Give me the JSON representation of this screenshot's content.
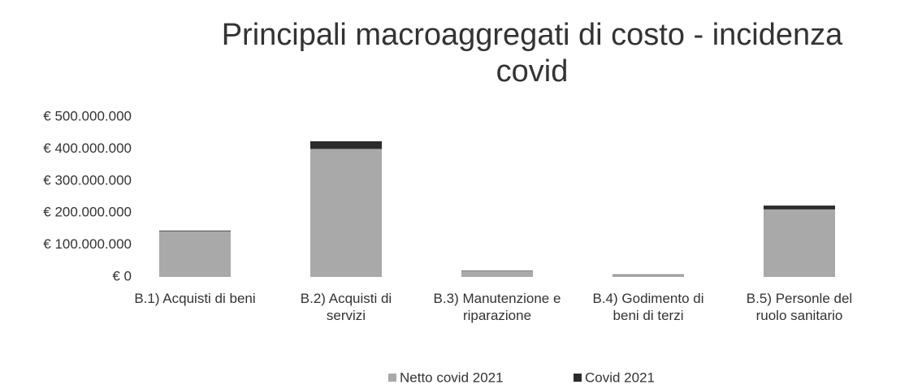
{
  "chart_data": {
    "type": "stacked_bar",
    "title_lines": [
      "Principali macroaggregati di costo - incidenza",
      "covid"
    ],
    "categories": [
      "B.1) Acquisti di beni",
      "B.2) Acquisti di servizi",
      "B.3) Manutenzione e riparazione",
      "B.4) Godimento di beni di terzi",
      "B.5) Personle del ruolo sanitario"
    ],
    "series": [
      {
        "name": "Netto covid 2021",
        "color": "#a9a9a9",
        "values": [
          143000000,
          400000000,
          19000000,
          7000000,
          211000000
        ]
      },
      {
        "name": "Covid 2021",
        "color": "#2b2b2b",
        "values": [
          2000000,
          24000000,
          1000000,
          1000000,
          12000000
        ]
      }
    ],
    "ylim": [
      0,
      500000000
    ],
    "yticks": [
      {
        "value": 0,
        "label": "€ 0"
      },
      {
        "value": 100000000,
        "label": "€ 100.000.000"
      },
      {
        "value": 200000000,
        "label": "€ 200.000.000"
      },
      {
        "value": 300000000,
        "label": "€ 300.000.000"
      },
      {
        "value": 400000000,
        "label": "€ 400.000.000"
      },
      {
        "value": 500000000,
        "label": "€ 500.000.000"
      }
    ],
    "grid": false,
    "legend": "bottom"
  }
}
